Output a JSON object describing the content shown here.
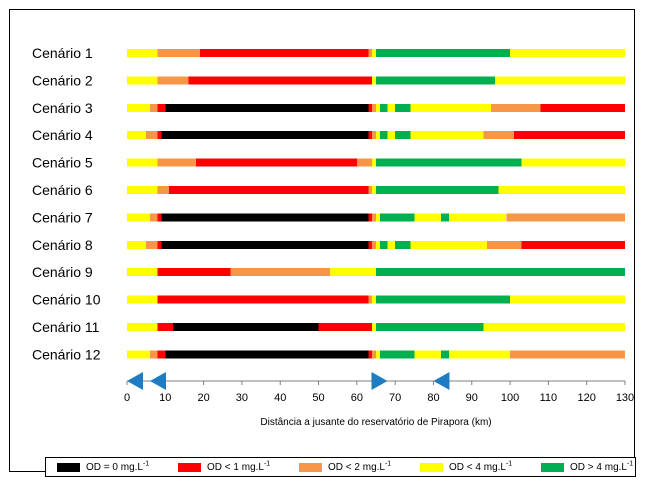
{
  "chart_data": {
    "type": "bar",
    "orientation": "horizontal",
    "stacked": true,
    "xlabel": "Distância a jusante do reservatório de Pirapora (km)",
    "ylabel": "",
    "xlim": [
      0,
      130
    ],
    "xticks": [
      0,
      10,
      20,
      30,
      40,
      50,
      60,
      70,
      80,
      90,
      100,
      110,
      120,
      130
    ],
    "categories": [
      "Cenário  1",
      "Cenário  2",
      "Cenário  3",
      "Cenário  4",
      "Cenário  5",
      "Cenário  6",
      "Cenário  7",
      "Cenário  8",
      "Cenário  9",
      "Cenário 10",
      "Cenário 11",
      "Cenário 12"
    ],
    "classes": [
      {
        "key": "od0",
        "label": "OD = 0 mg.L",
        "sup": "-1",
        "color": "#000000"
      },
      {
        "key": "od1",
        "label": "OD < 1 mg.L",
        "sup": "-1",
        "color": "#ff0000"
      },
      {
        "key": "od2",
        "label": "OD < 2 mg.L",
        "sup": "-1",
        "color": "#f79646"
      },
      {
        "key": "od4",
        "label": "OD < 4 mg.L",
        "sup": "-1",
        "color": "#ffff00"
      },
      {
        "key": "odg4",
        "label": "OD > 4 mg.L",
        "sup": "-1",
        "color": "#00b050"
      }
    ],
    "segments": [
      [
        [
          0,
          8,
          "od4"
        ],
        [
          8,
          19,
          "od2"
        ],
        [
          19,
          63,
          "od1"
        ],
        [
          63,
          64,
          "od2"
        ],
        [
          64,
          65,
          "od4"
        ],
        [
          65,
          100,
          "odg4"
        ],
        [
          100,
          130,
          "od4"
        ]
      ],
      [
        [
          0,
          8,
          "od4"
        ],
        [
          8,
          16,
          "od2"
        ],
        [
          16,
          64,
          "od1"
        ],
        [
          64,
          65,
          "od4"
        ],
        [
          65,
          96,
          "odg4"
        ],
        [
          96,
          130,
          "od4"
        ]
      ],
      [
        [
          0,
          6,
          "od4"
        ],
        [
          6,
          8,
          "od2"
        ],
        [
          8,
          10,
          "od1"
        ],
        [
          10,
          63,
          "od0"
        ],
        [
          63,
          64,
          "od1"
        ],
        [
          64,
          65,
          "od2"
        ],
        [
          65,
          66,
          "od4"
        ],
        [
          66,
          68,
          "odg4"
        ],
        [
          68,
          70,
          "od4"
        ],
        [
          70,
          74,
          "odg4"
        ],
        [
          74,
          95,
          "od4"
        ],
        [
          95,
          108,
          "od2"
        ],
        [
          108,
          130,
          "od1"
        ]
      ],
      [
        [
          0,
          5,
          "od4"
        ],
        [
          5,
          8,
          "od2"
        ],
        [
          8,
          9,
          "od1"
        ],
        [
          9,
          63,
          "od0"
        ],
        [
          63,
          64,
          "od1"
        ],
        [
          64,
          65,
          "od2"
        ],
        [
          65,
          66,
          "od4"
        ],
        [
          66,
          68,
          "odg4"
        ],
        [
          68,
          70,
          "od4"
        ],
        [
          70,
          74,
          "odg4"
        ],
        [
          74,
          93,
          "od4"
        ],
        [
          93,
          101,
          "od2"
        ],
        [
          101,
          130,
          "od1"
        ]
      ],
      [
        [
          0,
          8,
          "od4"
        ],
        [
          8,
          18,
          "od2"
        ],
        [
          18,
          60,
          "od1"
        ],
        [
          60,
          64,
          "od2"
        ],
        [
          64,
          65,
          "od4"
        ],
        [
          65,
          103,
          "odg4"
        ],
        [
          103,
          130,
          "od4"
        ]
      ],
      [
        [
          0,
          8,
          "od4"
        ],
        [
          8,
          11,
          "od2"
        ],
        [
          11,
          63,
          "od1"
        ],
        [
          63,
          64,
          "od2"
        ],
        [
          64,
          65,
          "od4"
        ],
        [
          65,
          97,
          "odg4"
        ],
        [
          97,
          130,
          "od4"
        ]
      ],
      [
        [
          0,
          6,
          "od4"
        ],
        [
          6,
          8,
          "od2"
        ],
        [
          8,
          9,
          "od1"
        ],
        [
          9,
          63,
          "od0"
        ],
        [
          63,
          64,
          "od1"
        ],
        [
          64,
          65,
          "od2"
        ],
        [
          65,
          66,
          "od4"
        ],
        [
          66,
          75,
          "odg4"
        ],
        [
          75,
          82,
          "od4"
        ],
        [
          82,
          84,
          "odg4"
        ],
        [
          84,
          99,
          "od4"
        ],
        [
          99,
          130,
          "od2"
        ]
      ],
      [
        [
          0,
          5,
          "od4"
        ],
        [
          5,
          8,
          "od2"
        ],
        [
          8,
          9,
          "od1"
        ],
        [
          9,
          63,
          "od0"
        ],
        [
          63,
          64,
          "od1"
        ],
        [
          64,
          65,
          "od2"
        ],
        [
          65,
          66,
          "od4"
        ],
        [
          66,
          68,
          "odg4"
        ],
        [
          68,
          70,
          "od4"
        ],
        [
          70,
          74,
          "odg4"
        ],
        [
          74,
          94,
          "od4"
        ],
        [
          94,
          103,
          "od2"
        ],
        [
          103,
          130,
          "od1"
        ]
      ],
      [
        [
          0,
          8,
          "od4"
        ],
        [
          8,
          27,
          "od1"
        ],
        [
          27,
          53,
          "od2"
        ],
        [
          53,
          65,
          "od4"
        ],
        [
          65,
          130,
          "odg4"
        ]
      ],
      [
        [
          0,
          8,
          "od4"
        ],
        [
          8,
          63,
          "od1"
        ],
        [
          63,
          64,
          "od2"
        ],
        [
          64,
          65,
          "od4"
        ],
        [
          65,
          100,
          "odg4"
        ],
        [
          100,
          130,
          "od4"
        ]
      ],
      [
        [
          0,
          8,
          "od4"
        ],
        [
          8,
          12,
          "od1"
        ],
        [
          12,
          50,
          "od0"
        ],
        [
          50,
          64,
          "od1"
        ],
        [
          64,
          65,
          "od4"
        ],
        [
          65,
          93,
          "odg4"
        ],
        [
          93,
          130,
          "od4"
        ]
      ],
      [
        [
          0,
          6,
          "od4"
        ],
        [
          6,
          8,
          "od2"
        ],
        [
          8,
          10,
          "od1"
        ],
        [
          10,
          63,
          "od0"
        ],
        [
          63,
          64,
          "od1"
        ],
        [
          64,
          65,
          "od2"
        ],
        [
          65,
          66,
          "od4"
        ],
        [
          66,
          75,
          "odg4"
        ],
        [
          75,
          82,
          "od4"
        ],
        [
          82,
          84,
          "odg4"
        ],
        [
          84,
          100,
          "od4"
        ],
        [
          100,
          130,
          "od2"
        ]
      ]
    ],
    "markers": [
      {
        "km": 0,
        "direction": "left",
        "color": "#1f7cc0"
      },
      {
        "km": 6,
        "direction": "left",
        "color": "#1f7cc0"
      },
      {
        "km": 68,
        "direction": "right",
        "color": "#1f7cc0"
      },
      {
        "km": 80,
        "direction": "left",
        "color": "#1f7cc0"
      }
    ],
    "legend_position": "bottom",
    "grid": false
  }
}
